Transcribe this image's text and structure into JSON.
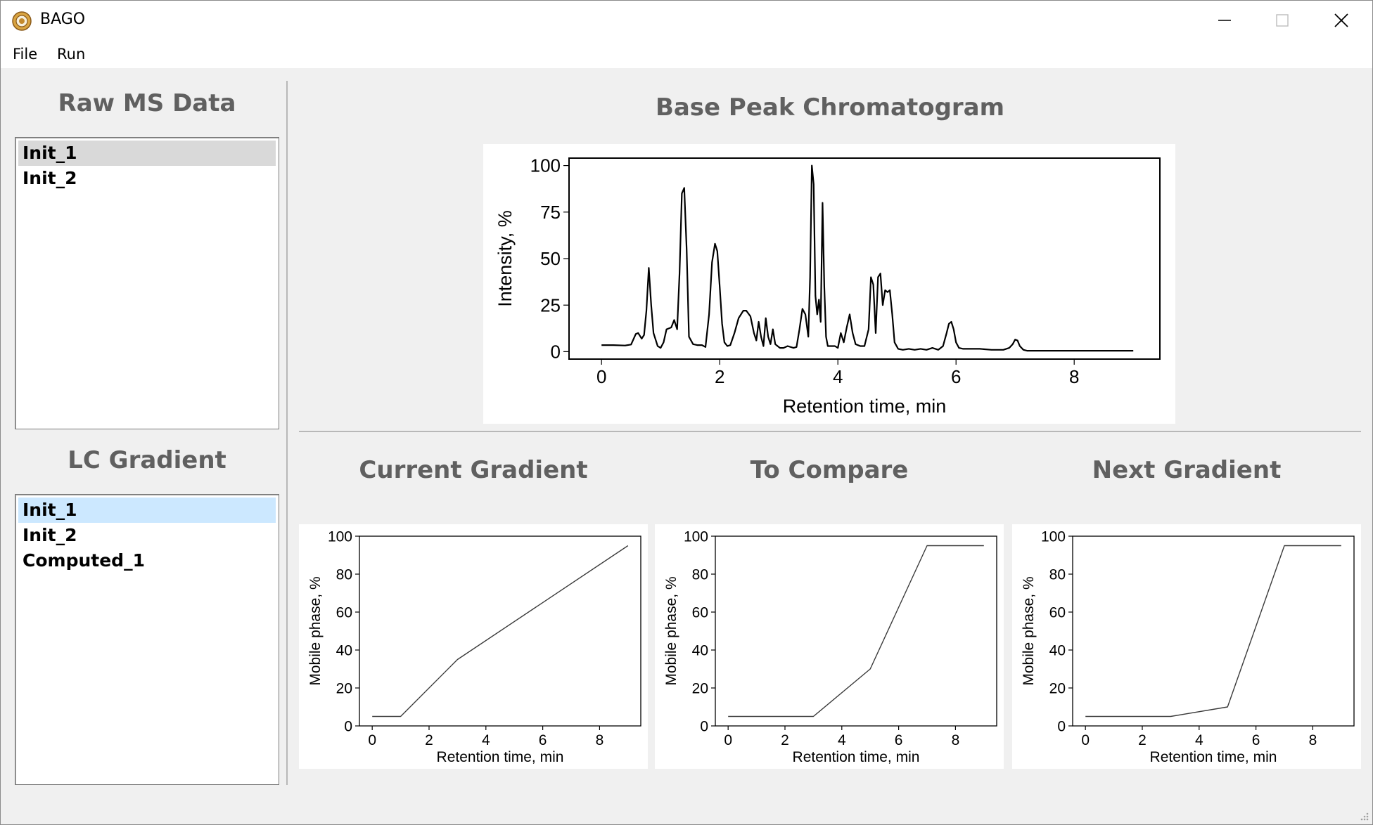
{
  "window": {
    "title": "BAGO",
    "icon": "sunflower-app-icon",
    "controls": [
      "minimize-icon",
      "maximize-icon",
      "close-icon"
    ]
  },
  "menu": {
    "items": [
      "File",
      "Run"
    ]
  },
  "raw_ms": {
    "title": "Raw MS Data",
    "items": [
      "Init_1",
      "Init_2"
    ],
    "selected": "Init_1"
  },
  "lc_gradient": {
    "title": "LC Gradient",
    "items": [
      "Init_1",
      "Init_2",
      "Computed_1"
    ],
    "selected": "Init_1"
  },
  "bpc": {
    "title": "Base Peak Chromatogram"
  },
  "gradients": {
    "current_title": "Current Gradient",
    "compare_title": "To Compare",
    "next_title": "Next Gradient"
  },
  "chart_data": [
    {
      "type": "line",
      "xlabel": "Retention time, min",
      "ylabel": "Intensity, %",
      "xlim": [
        -0.55,
        9.45
      ],
      "ylim": [
        -4,
        104
      ],
      "xticks": [
        0,
        2,
        4,
        6,
        8
      ],
      "yticks": [
        0,
        25,
        50,
        75,
        100
      ],
      "grid": false,
      "x": [
        0,
        0.2,
        0.4,
        0.5,
        0.58,
        0.62,
        0.68,
        0.72,
        0.76,
        0.8,
        0.84,
        0.88,
        0.95,
        1.0,
        1.05,
        1.1,
        1.18,
        1.23,
        1.28,
        1.32,
        1.36,
        1.4,
        1.44,
        1.48,
        1.55,
        1.62,
        1.7,
        1.76,
        1.82,
        1.87,
        1.92,
        1.96,
        2.0,
        2.04,
        2.08,
        2.13,
        2.18,
        2.25,
        2.32,
        2.4,
        2.45,
        2.52,
        2.58,
        2.62,
        2.66,
        2.7,
        2.74,
        2.78,
        2.82,
        2.86,
        2.9,
        2.94,
        2.98,
        3.02,
        3.08,
        3.15,
        3.25,
        3.3,
        3.35,
        3.4,
        3.45,
        3.5,
        3.53,
        3.56,
        3.59,
        3.62,
        3.65,
        3.68,
        3.71,
        3.74,
        3.77,
        3.8,
        3.83,
        3.88,
        3.95,
        4.0,
        4.05,
        4.1,
        4.15,
        4.2,
        4.25,
        4.3,
        4.38,
        4.45,
        4.52,
        4.56,
        4.6,
        4.64,
        4.68,
        4.72,
        4.76,
        4.8,
        4.84,
        4.88,
        4.92,
        4.96,
        5.02,
        5.1,
        5.2,
        5.3,
        5.4,
        5.5,
        5.6,
        5.7,
        5.78,
        5.84,
        5.88,
        5.92,
        5.96,
        6.0,
        6.05,
        6.12,
        6.2,
        6.4,
        6.6,
        6.8,
        6.9,
        6.96,
        7.0,
        7.04,
        7.08,
        7.14,
        7.2,
        7.3,
        7.5,
        8.0,
        8.5,
        9.0
      ],
      "values": [
        3.5,
        3.5,
        3.3,
        3.8,
        9.5,
        10,
        7,
        9,
        22,
        45,
        25,
        10,
        3,
        2,
        5,
        12,
        13,
        17,
        12,
        42,
        85,
        88,
        55,
        8,
        4,
        3.5,
        3.5,
        2.5,
        20,
        48,
        58,
        54,
        35,
        15,
        5,
        3,
        3.5,
        10,
        18,
        22,
        22,
        19,
        10,
        6,
        16,
        8,
        3,
        18,
        8,
        4,
        12,
        4,
        3,
        2,
        2,
        3,
        2,
        2.5,
        12,
        23,
        20,
        8,
        40,
        100,
        90,
        30,
        20,
        28,
        16,
        80,
        35,
        8,
        3,
        3,
        3,
        2,
        10,
        5,
        13,
        20,
        10,
        4,
        3,
        3,
        12,
        40,
        36,
        10,
        40,
        42,
        25,
        33,
        32,
        33,
        20,
        5,
        1.5,
        1,
        1.5,
        1,
        1.5,
        1,
        2,
        1,
        3,
        10,
        15,
        16,
        12,
        5,
        2,
        1.5,
        1.5,
        1.5,
        1,
        1,
        2,
        4,
        6.5,
        6,
        3,
        1,
        0.5,
        0.5,
        0.5,
        0.5,
        0.5,
        0.5
      ]
    },
    {
      "type": "line",
      "title": "Current Gradient",
      "xlabel": "Retention time, min",
      "ylabel": "Mobile phase, %",
      "xlim": [
        -0.45,
        9.45
      ],
      "ylim": [
        0,
        100
      ],
      "xticks": [
        0,
        2,
        4,
        6,
        8
      ],
      "yticks": [
        0,
        20,
        40,
        60,
        80,
        100
      ],
      "grid": false,
      "x": [
        0,
        1,
        3,
        9
      ],
      "values": [
        5,
        5,
        35,
        95
      ]
    },
    {
      "type": "line",
      "title": "To Compare",
      "xlabel": "Retention time, min",
      "ylabel": "Mobile phase, %",
      "xlim": [
        -0.45,
        9.45
      ],
      "ylim": [
        0,
        100
      ],
      "xticks": [
        0,
        2,
        4,
        6,
        8
      ],
      "yticks": [
        0,
        20,
        40,
        60,
        80,
        100
      ],
      "grid": false,
      "x": [
        0,
        3,
        5,
        7,
        9
      ],
      "values": [
        5,
        5,
        30,
        95,
        95
      ]
    },
    {
      "type": "line",
      "title": "Next Gradient",
      "xlabel": "Retention time, min",
      "ylabel": "Mobile phase, %",
      "xlim": [
        -0.45,
        9.45
      ],
      "ylim": [
        0,
        100
      ],
      "xticks": [
        0,
        2,
        4,
        6,
        8
      ],
      "yticks": [
        0,
        20,
        40,
        60,
        80,
        100
      ],
      "grid": false,
      "x": [
        0,
        3,
        5,
        7,
        9
      ],
      "values": [
        5,
        5,
        10,
        95,
        95
      ]
    }
  ]
}
